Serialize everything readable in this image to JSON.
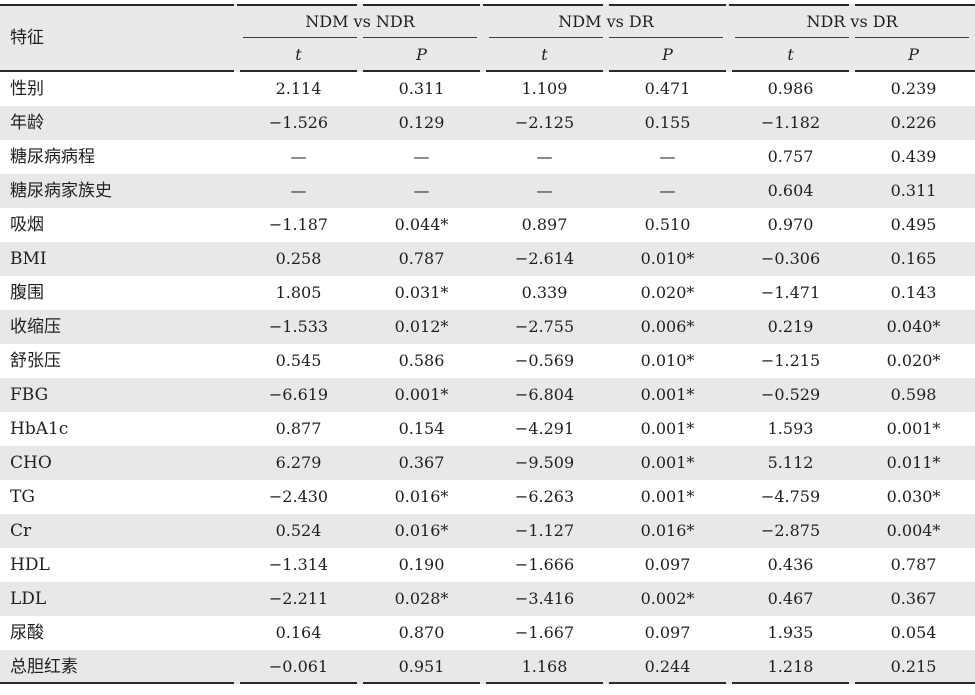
{
  "table": {
    "feature_header": "特征",
    "groups": [
      {
        "label": "NDM vs NDR"
      },
      {
        "label": "NDM vs DR"
      },
      {
        "label": "NDR vs DR"
      }
    ],
    "sub_headers": {
      "t": "t",
      "p": "P"
    },
    "rows": [
      {
        "feature": "性别",
        "values": [
          "2.114",
          "0.311",
          "1.109",
          "0.471",
          "0.986",
          "0.239"
        ]
      },
      {
        "feature": "年龄",
        "values": [
          "−1.526",
          "0.129",
          "−2.125",
          "0.155",
          "−1.182",
          "0.226"
        ]
      },
      {
        "feature": "糖尿病病程",
        "values": [
          "—",
          "—",
          "—",
          "—",
          "0.757",
          "0.439"
        ]
      },
      {
        "feature": "糖尿病家族史",
        "values": [
          "—",
          "—",
          "—",
          "—",
          "0.604",
          "0.311"
        ]
      },
      {
        "feature": "吸烟",
        "values": [
          "−1.187",
          "0.044*",
          "0.897",
          "0.510",
          "0.970",
          "0.495"
        ]
      },
      {
        "feature": "BMI",
        "values": [
          "0.258",
          "0.787",
          "−2.614",
          "0.010*",
          "−0.306",
          "0.165"
        ]
      },
      {
        "feature": "腹围",
        "values": [
          "1.805",
          "0.031*",
          "0.339",
          "0.020*",
          "−1.471",
          "0.143"
        ]
      },
      {
        "feature": "收缩压",
        "values": [
          "−1.533",
          "0.012*",
          "−2.755",
          "0.006*",
          "0.219",
          "0.040*"
        ]
      },
      {
        "feature": "舒张压",
        "values": [
          "0.545",
          "0.586",
          "−0.569",
          "0.010*",
          "−1.215",
          "0.020*"
        ]
      },
      {
        "feature": "FBG",
        "values": [
          "−6.619",
          "0.001*",
          "−6.804",
          "0.001*",
          "−0.529",
          "0.598"
        ]
      },
      {
        "feature": "HbA1c",
        "values": [
          "0.877",
          "0.154",
          "−4.291",
          "0.001*",
          "1.593",
          "0.001*"
        ]
      },
      {
        "feature": "CHO",
        "values": [
          "6.279",
          "0.367",
          "−9.509",
          "0.001*",
          "5.112",
          "0.011*"
        ]
      },
      {
        "feature": "TG",
        "values": [
          "−2.430",
          "0.016*",
          "−6.263",
          "0.001*",
          "−4.759",
          "0.030*"
        ]
      },
      {
        "feature": "Cr",
        "values": [
          "0.524",
          "0.016*",
          "−1.127",
          "0.016*",
          "−2.875",
          "0.004*"
        ]
      },
      {
        "feature": "HDL",
        "values": [
          "−1.314",
          "0.190",
          "−1.666",
          "0.097",
          "0.436",
          "0.787"
        ]
      },
      {
        "feature": "LDL",
        "values": [
          "−2.211",
          "0.028*",
          "−3.416",
          "0.002*",
          "0.467",
          "0.367"
        ]
      },
      {
        "feature": "尿酸",
        "values": [
          "0.164",
          "0.870",
          "−1.667",
          "0.097",
          "1.935",
          "0.054"
        ]
      },
      {
        "feature": "总胆红素",
        "values": [
          "−0.061",
          "0.951",
          "1.168",
          "0.244",
          "1.218",
          "0.215"
        ]
      }
    ],
    "colors": {
      "stripe": "#e8e8e8",
      "header_bg": "#e9e9e9",
      "rule": "#2a2a2a"
    }
  }
}
